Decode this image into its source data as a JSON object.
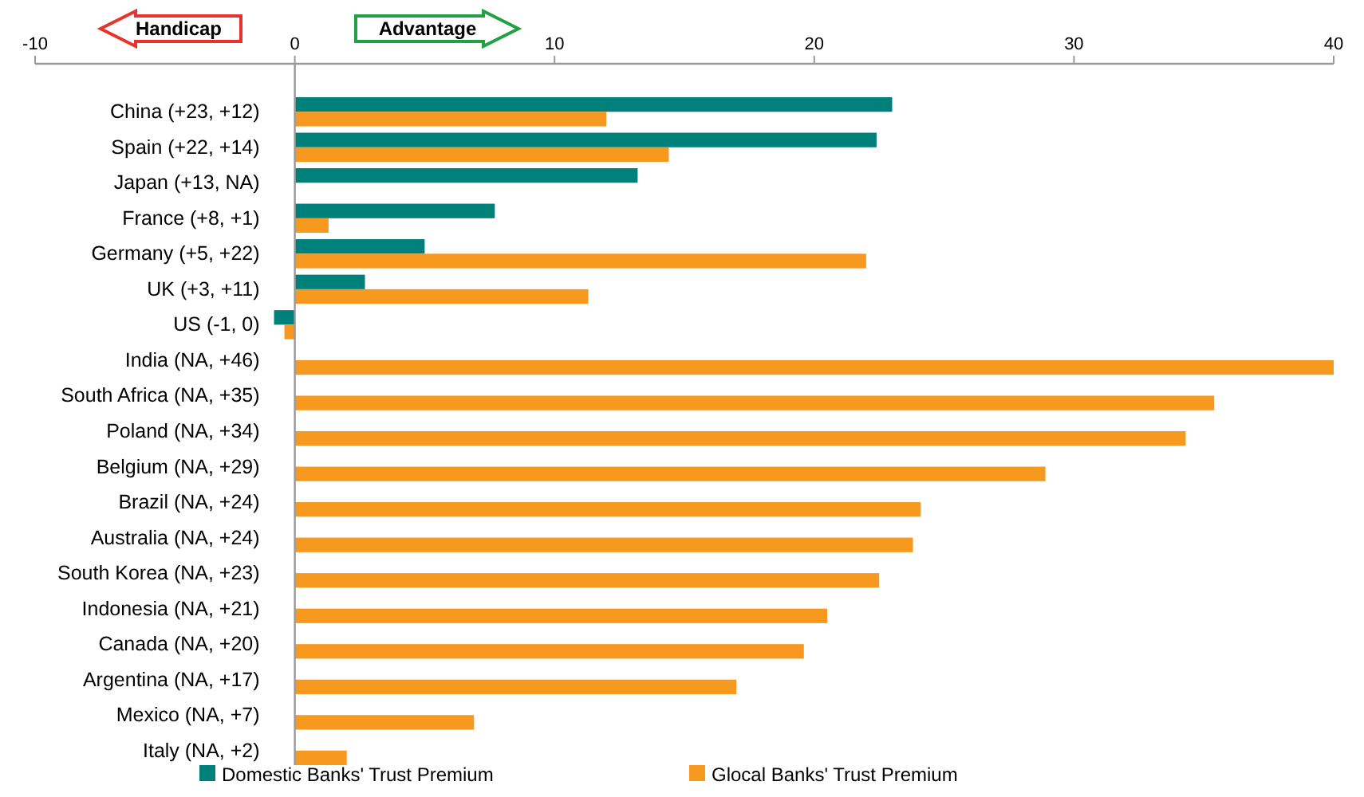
{
  "chart_data": {
    "type": "bar",
    "orientation": "horizontal",
    "categories": [
      "China (+23, +12)",
      "Spain (+22, +14)",
      "Japan (+13, NA)",
      "France (+8, +1)",
      "Germany (+5, +22)",
      "UK (+3, +11)",
      "US (-1, 0)",
      "India (NA, +46)",
      "South Africa (NA, +35)",
      "Poland (NA, +34)",
      "Belgium (NA, +29)",
      "Brazil (NA, +24)",
      "Australia (NA, +24)",
      "South Korea (NA, +23)",
      "Indonesia (NA, +21)",
      "Canada (NA, +20)",
      "Argentina (NA, +17)",
      "Mexico (NA, +7)",
      "Italy (NA, +2)"
    ],
    "series": [
      {
        "name": "Domestic Banks' Trust Premium",
        "color": "#00807a",
        "values": [
          23,
          22.4,
          13.2,
          7.7,
          5,
          2.7,
          -0.8,
          null,
          null,
          null,
          null,
          null,
          null,
          null,
          null,
          null,
          null,
          null,
          null
        ]
      },
      {
        "name": "Glocal Banks' Trust Premium",
        "color": "#f7991f",
        "values": [
          12,
          14.4,
          null,
          1.3,
          22,
          11.3,
          -0.4,
          40,
          35.4,
          34.3,
          28.9,
          24.1,
          23.8,
          22.5,
          20.5,
          19.6,
          17,
          6.9,
          2
        ]
      }
    ],
    "xlim": [
      -10,
      40
    ],
    "xticks": [
      -10,
      0,
      10,
      20,
      30,
      40
    ],
    "legend": "bottom",
    "grid": false,
    "annotations": [
      "Handicap",
      "Advantage"
    ]
  }
}
